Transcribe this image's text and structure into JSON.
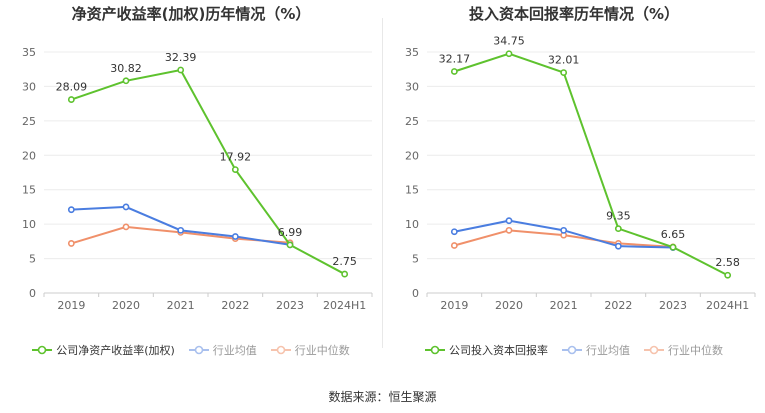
{
  "source": "数据来源：恒生聚源",
  "colors": {
    "company": "#5ec22e",
    "average": "#4a7de0",
    "median": "#f0906a"
  },
  "chart_data": [
    {
      "type": "line",
      "title": "净资产收益率(加权)历年情况（%）",
      "categories": [
        "2019",
        "2020",
        "2021",
        "2022",
        "2023",
        "2024H1"
      ],
      "ylim": [
        0,
        35
      ],
      "yticks": [
        0,
        5,
        10,
        15,
        20,
        25,
        30,
        35
      ],
      "grid": true,
      "legend_position": "bottom",
      "series": [
        {
          "name": "公司净资产收益率(加权)",
          "key": "company",
          "values": [
            28.09,
            30.82,
            32.39,
            17.92,
            6.99,
            2.75
          ],
          "labels": [
            "28.09",
            "30.82",
            "32.39",
            "17.92",
            "6.99",
            "2.75"
          ]
        },
        {
          "name": "行业均值",
          "key": "average",
          "values": [
            12.1,
            12.5,
            9.1,
            8.2,
            7.0,
            null
          ]
        },
        {
          "name": "行业中位数",
          "key": "median",
          "values": [
            7.2,
            9.6,
            8.8,
            7.9,
            7.3,
            null
          ]
        }
      ]
    },
    {
      "type": "line",
      "title": "投入资本回报率历年情况（%）",
      "categories": [
        "2019",
        "2020",
        "2021",
        "2022",
        "2023",
        "2024H1"
      ],
      "ylim": [
        0,
        35
      ],
      "yticks": [
        0,
        5,
        10,
        15,
        20,
        25,
        30,
        35
      ],
      "grid": true,
      "legend_position": "bottom",
      "series": [
        {
          "name": "公司投入资本回报率",
          "key": "company",
          "values": [
            32.17,
            34.75,
            32.01,
            9.35,
            6.65,
            2.58
          ],
          "labels": [
            "32.17",
            "34.75",
            "32.01",
            "9.35",
            "6.65",
            "2.58"
          ]
        },
        {
          "name": "行业均值",
          "key": "average",
          "values": [
            8.9,
            10.5,
            9.1,
            6.8,
            6.6,
            null
          ]
        },
        {
          "name": "行业中位数",
          "key": "median",
          "values": [
            6.9,
            9.1,
            8.4,
            7.2,
            6.7,
            null
          ]
        }
      ]
    }
  ]
}
